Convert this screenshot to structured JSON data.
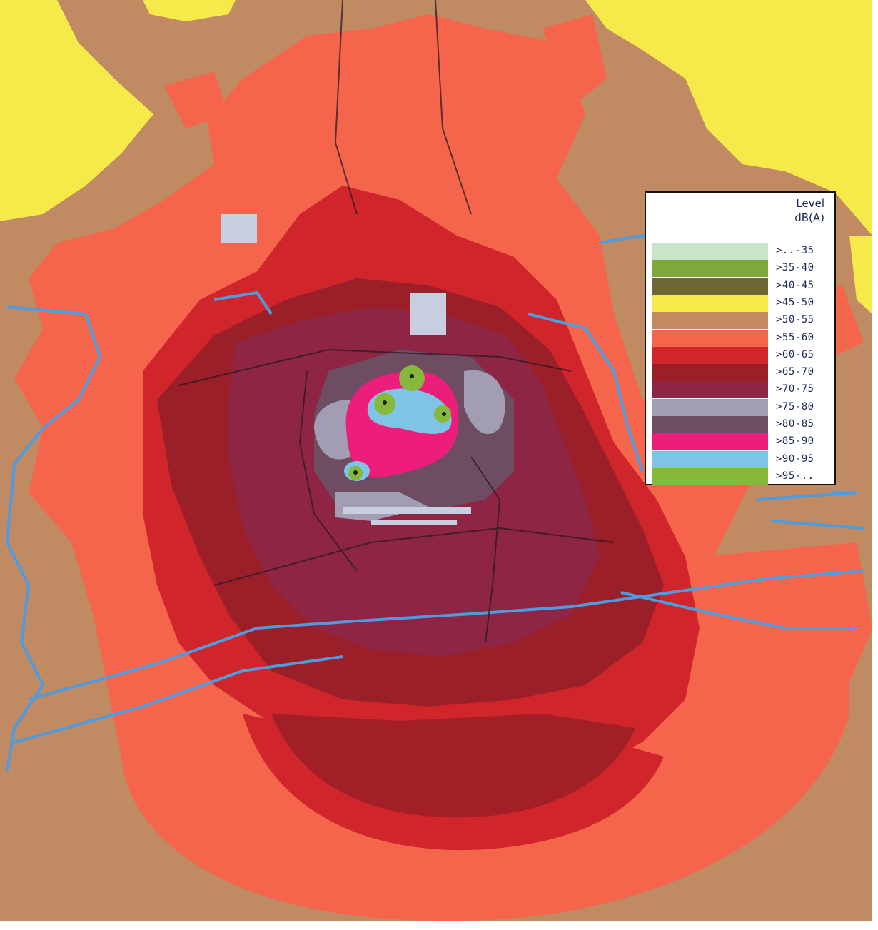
{
  "legend": {
    "title": "Level",
    "unit": "dB(A)",
    "bands": [
      {
        "label": ">..-35",
        "color": "#c9e4c8",
        "range": [
          null,
          35
        ]
      },
      {
        "label": ">35-40",
        "color": "#7fa83a",
        "range": [
          35,
          40
        ]
      },
      {
        "label": ">40-45",
        "color": "#6f6638",
        "range": [
          40,
          45
        ]
      },
      {
        "label": ">45-50",
        "color": "#f6ea4a",
        "range": [
          45,
          50
        ]
      },
      {
        "label": ">50-55",
        "color": "#c38a62",
        "range": [
          50,
          55
        ]
      },
      {
        "label": ">55-60",
        "color": "#f5654c",
        "range": [
          55,
          60
        ]
      },
      {
        "label": ">60-65",
        "color": "#d0262b",
        "range": [
          60,
          65
        ]
      },
      {
        "label": ">65-70",
        "color": "#9a1f28",
        "range": [
          65,
          70
        ]
      },
      {
        "label": ">70-75",
        "color": "#8e2545",
        "range": [
          70,
          75
        ]
      },
      {
        "label": ">75-80",
        "color": "#a29db3",
        "range": [
          75,
          80
        ]
      },
      {
        "label": ">80-85",
        "color": "#6e4d62",
        "range": [
          80,
          85
        ]
      },
      {
        "label": ">85-90",
        "color": "#ec1d7b",
        "range": [
          85,
          90
        ]
      },
      {
        "label": ">90-95",
        "color": "#7fc4e7",
        "range": [
          90,
          95
        ]
      },
      {
        "label": ">95-..",
        "color": "#86b83c",
        "range": [
          95,
          null
        ]
      }
    ]
  },
  "map_colors": {
    "background": "#c08a62",
    "buildings": "#4f9be0",
    "roads": "#2a1a22"
  },
  "sources": {
    "icon": "noise-source-marker",
    "count": 4
  }
}
